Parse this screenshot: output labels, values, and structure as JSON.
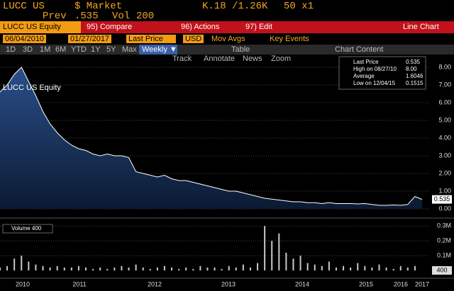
{
  "header": {
    "ticker": "LUCC US",
    "market": "$ Market",
    "bidask": "K.18 /1.26K",
    "size": "50 x1",
    "prev_label": "Prev",
    "prev": ".535",
    "vol_label": "Vol",
    "vol": "200"
  },
  "toolbar": {
    "security": "LUCC US Equity",
    "menus": [
      "95) Compare",
      "96) Actions",
      "97) Edit"
    ],
    "view": "Line Chart"
  },
  "controls": {
    "start": "06/04/2010",
    "end": "01/27/2017",
    "field": "Last Price",
    "currency": "USD",
    "options": [
      "Mov Avgs",
      "Key Events"
    ]
  },
  "periods": [
    "1D",
    "3D",
    "1M",
    "6M",
    "YTD",
    "1Y",
    "5Y",
    "Max"
  ],
  "frequency": "Weekly ▼",
  "tools": [
    "Table",
    "Chart Content"
  ],
  "subtools": [
    "Track",
    "Annotate",
    "News",
    "Zoom"
  ],
  "x_axis": [
    "2010",
    "2011",
    "2012",
    "2013",
    "2014",
    "2015",
    "2016",
    "2017"
  ],
  "chart_data": [
    {
      "type": "area",
      "title": "LUCC US Equity",
      "color": "#ffffff",
      "legend": [
        {
          "label": "Last Price",
          "value": "0.535"
        },
        {
          "label": "High on 08/27/10",
          "value": "8.00"
        },
        {
          "label": "Average",
          "value": "1.6046"
        },
        {
          "label": "Low on 12/04/15",
          "value": "0.1515"
        }
      ],
      "values": [
        6.6,
        7.0,
        7.6,
        8.0,
        7.2,
        6.4,
        5.5,
        4.8,
        4.3,
        3.9,
        3.6,
        3.4,
        3.3,
        3.1,
        3.0,
        3.1,
        3.0,
        3.0,
        2.9,
        2.1,
        2.0,
        1.9,
        1.8,
        1.9,
        1.7,
        1.6,
        1.6,
        1.5,
        1.4,
        1.3,
        1.2,
        1.1,
        1.0,
        1.0,
        0.9,
        0.8,
        0.7,
        0.6,
        0.55,
        0.5,
        0.45,
        0.4,
        0.4,
        0.35,
        0.35,
        0.3,
        0.35,
        0.3,
        0.3,
        0.3,
        0.28,
        0.3,
        0.25,
        0.2,
        0.2,
        0.22,
        0.2,
        0.25,
        0.7,
        0.535
      ],
      "ylim": [
        0,
        8.2
      ],
      "yticks": [
        {
          "value": 0,
          "label": "0.00"
        },
        {
          "value": 1,
          "label": "1.00"
        },
        {
          "value": 2,
          "label": "2.00"
        },
        {
          "value": 3,
          "label": "3.00"
        },
        {
          "value": 4,
          "label": "4.00"
        },
        {
          "value": 5,
          "label": "5.00"
        },
        {
          "value": 6,
          "label": "6.00"
        },
        {
          "value": 7,
          "label": "7.00"
        },
        {
          "value": 8,
          "label": "8.00"
        }
      ],
      "grid": true
    },
    {
      "type": "bar",
      "title": "Volume 400",
      "color": "#c8c8c8",
      "values": [
        0.02,
        0.03,
        0.08,
        0.1,
        0.06,
        0.04,
        0.03,
        0.02,
        0.03,
        0.02,
        0.02,
        0.03,
        0.02,
        0.01,
        0.02,
        0.01,
        0.02,
        0.03,
        0.02,
        0.04,
        0.02,
        0.01,
        0.02,
        0.03,
        0.02,
        0.01,
        0.02,
        0.01,
        0.03,
        0.02,
        0.02,
        0.01,
        0.03,
        0.02,
        0.04,
        0.02,
        0.05,
        0.3,
        0.2,
        0.25,
        0.12,
        0.08,
        0.1,
        0.05,
        0.04,
        0.03,
        0.06,
        0.02,
        0.03,
        0.02,
        0.05,
        0.03,
        0.02,
        0.04,
        0.02,
        0.01,
        0.03,
        0.02,
        0.03,
        0.0004
      ],
      "last_label": "400",
      "ylim": [
        0,
        0.33
      ],
      "yticks": [
        {
          "value": 0.1,
          "label": "0.1M"
        },
        {
          "value": 0.2,
          "label": "0.2M"
        },
        {
          "value": 0.3,
          "label": "0.3M"
        }
      ],
      "grid": true
    }
  ]
}
